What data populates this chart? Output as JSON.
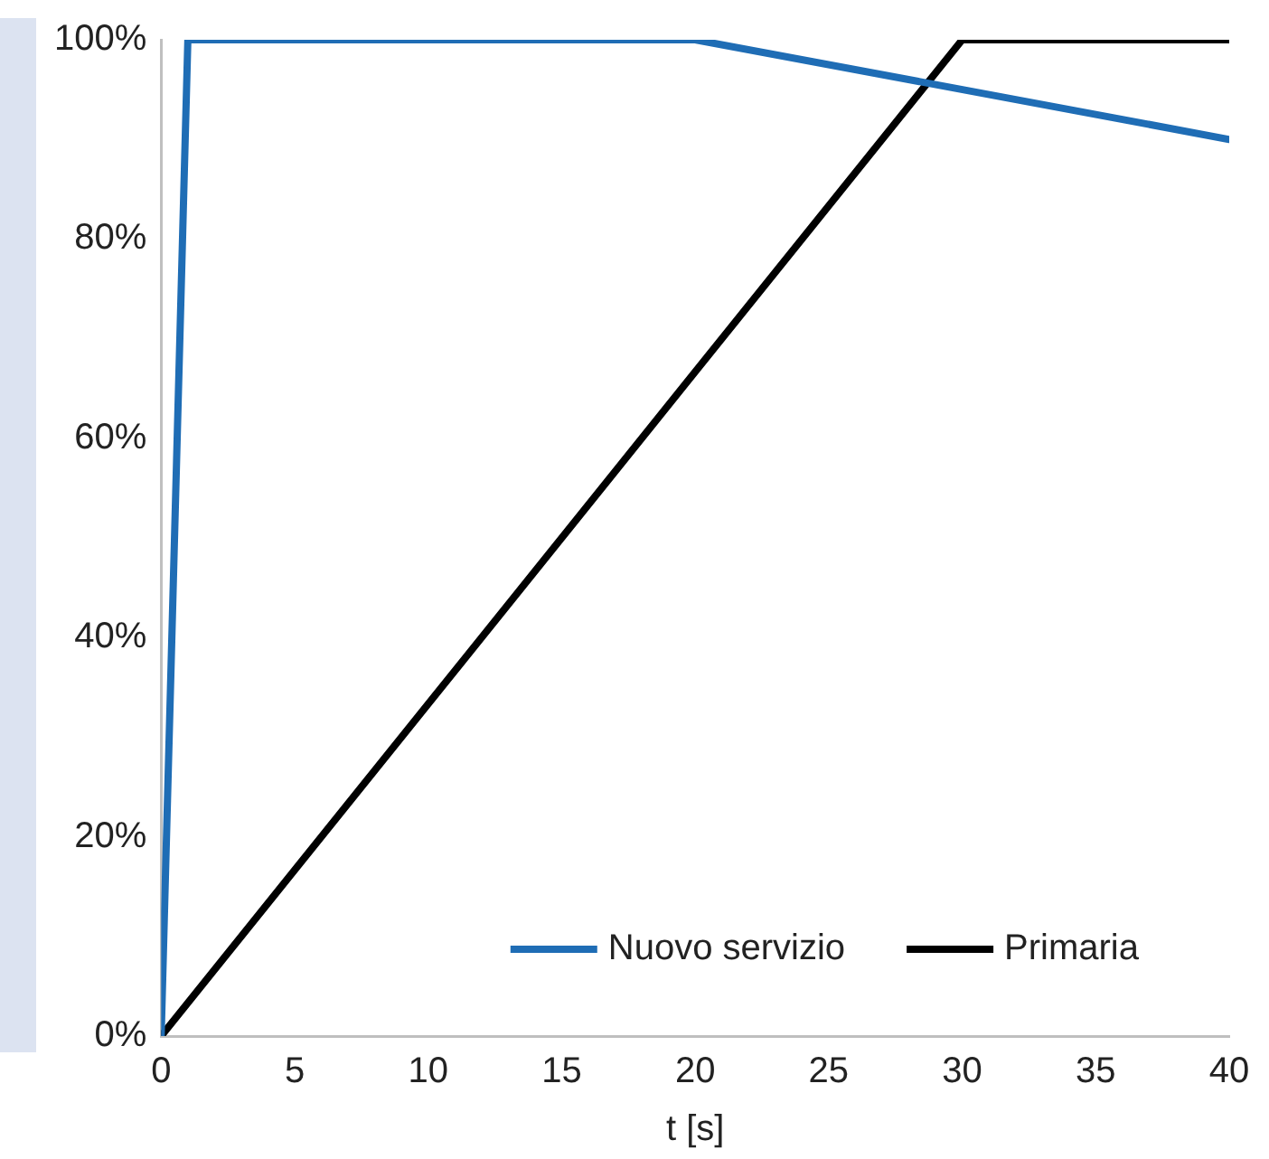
{
  "chart_data": {
    "type": "line",
    "xlabel": "t [s]",
    "xlim": [
      0,
      40
    ],
    "xticks": [
      0,
      5,
      10,
      15,
      20,
      25,
      30,
      35,
      40
    ],
    "ylim": [
      0,
      100
    ],
    "yticks": [
      {
        "value": 0,
        "label": "0%"
      },
      {
        "value": 20,
        "label": "20%"
      },
      {
        "value": 40,
        "label": "40%"
      },
      {
        "value": 60,
        "label": "60%"
      },
      {
        "value": 80,
        "label": "80%"
      },
      {
        "value": 100,
        "label": "100%"
      }
    ],
    "series": [
      {
        "name": "Nuovo servizio",
        "color": "#1f6db5",
        "x": [
          0,
          1,
          20,
          40
        ],
        "values": [
          0,
          100,
          100,
          90
        ]
      },
      {
        "name": "Primaria",
        "color": "#000000",
        "x": [
          0,
          30,
          40
        ],
        "values": [
          0,
          100,
          100
        ]
      }
    ],
    "grid": false,
    "legend": "bottom right",
    "marker": "none",
    "line_style": "solid"
  }
}
